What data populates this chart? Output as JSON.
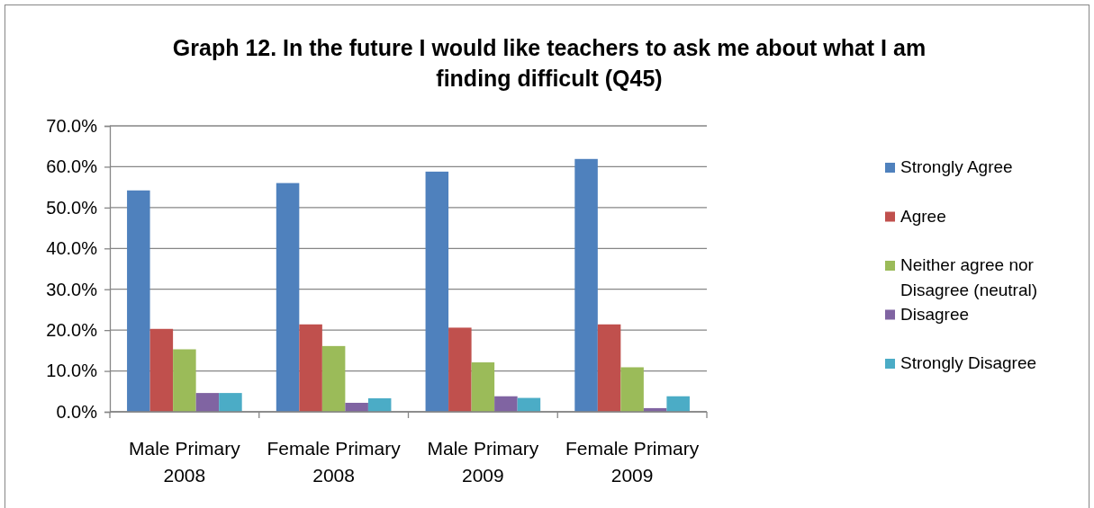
{
  "chart_data": {
    "type": "bar",
    "title": "Graph 12. In the future I would like teachers to ask me about what I am finding difficult (Q45)",
    "categories": [
      "Male Primary 2008",
      "Female Primary 2008",
      "Male Primary 2009",
      "Female Primary 2009"
    ],
    "series": [
      {
        "name": "Strongly Agree",
        "color": "#4f81bd",
        "values": [
          54.2,
          56.0,
          58.8,
          61.9
        ]
      },
      {
        "name": "Agree",
        "color": "#c0504d",
        "values": [
          20.3,
          21.4,
          20.6,
          21.4
        ]
      },
      {
        "name": "Neither agree nor Disagree (neutral)",
        "color": "#9bbb59",
        "values": [
          15.3,
          16.1,
          12.1,
          10.9
        ]
      },
      {
        "name": "Disagree",
        "color": "#8064a2",
        "values": [
          4.6,
          2.2,
          3.8,
          0.9
        ]
      },
      {
        "name": "Strongly Disagree",
        "color": "#4bacc6",
        "values": [
          4.6,
          3.3,
          3.4,
          3.8
        ]
      }
    ],
    "ylim": [
      0,
      70
    ],
    "yticks": [
      {
        "value": 0,
        "label": "0.0%"
      },
      {
        "value": 10,
        "label": "10.0%"
      },
      {
        "value": 20,
        "label": "20.0%"
      },
      {
        "value": 30,
        "label": "30.0%"
      },
      {
        "value": 40,
        "label": "40.0%"
      },
      {
        "value": 50,
        "label": "50.0%"
      },
      {
        "value": 60,
        "label": "60.0%"
      },
      {
        "value": 70,
        "label": "70.0%"
      }
    ],
    "grid": "y",
    "legend": "right"
  }
}
